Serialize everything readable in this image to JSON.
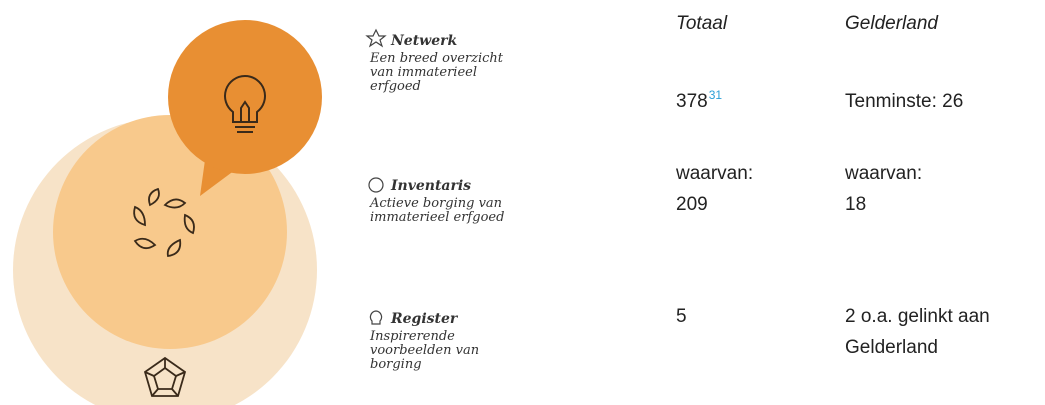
{
  "items": [
    {
      "title": "Netwerk",
      "description": [
        "Een breed overzicht",
        "van immaterieel",
        "erfgoed"
      ]
    },
    {
      "title": "Inventaris",
      "description": [
        "Actieve borging van",
        "immaterieel erfgoed"
      ]
    },
    {
      "title": "Register",
      "description": [
        "Inspirerende",
        "voorbeelden van",
        "borging"
      ]
    }
  ],
  "table": {
    "header": [
      "Totaal",
      "Gelderland"
    ],
    "rows": [
      [
        {
          "text": [
            "378"
          ],
          "footnote": "31"
        },
        {
          "text": [
            "Tenminste: 26"
          ]
        }
      ],
      [
        {
          "text": [
            "waarvan:",
            "209"
          ]
        },
        {
          "text": [
            "waarvan:",
            "18"
          ]
        }
      ],
      [
        {
          "text": [
            "5"
          ]
        },
        {
          "text": [
            "2 o.a. gelinkt aan",
            "Gelderland"
          ]
        }
      ]
    ]
  }
}
